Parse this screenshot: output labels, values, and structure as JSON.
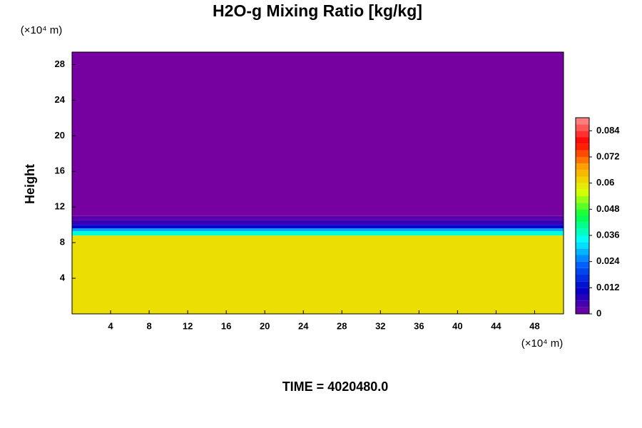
{
  "chart_data": {
    "type": "contour",
    "title": "H2O-g Mixing Ratio [kg/kg]",
    "ylabel": "Height",
    "yunit": "(×10⁴ m)",
    "xunit": "(×10⁴ m)",
    "footer": "TIME = 4020480.0",
    "xlim": [
      0,
      51
    ],
    "xticks": [
      4,
      8,
      12,
      16,
      20,
      24,
      28,
      32,
      36,
      40,
      44,
      48
    ],
    "ylim": [
      0,
      29.4
    ],
    "yticks": [
      4,
      8,
      12,
      16,
      20,
      24,
      28
    ],
    "ybins": [
      0,
      8.8,
      9.3,
      9.6,
      10.0,
      10.5,
      11.0,
      29.4
    ],
    "values": [
      0.06,
      0.036,
      0.027,
      0.012,
      0.006,
      0.003,
      0
    ],
    "clim": [
      0,
      0.09
    ],
    "cticks": [
      0,
      0.012,
      0.024,
      0.036,
      0.048,
      0.06,
      0.072,
      0.084
    ],
    "colormap": [
      "#7700a0",
      "#0000c8",
      "#0060ff",
      "#00ffff",
      "#00ff40",
      "#e0ff00",
      "#ffa000",
      "#ff0000",
      "#ff9090"
    ]
  }
}
